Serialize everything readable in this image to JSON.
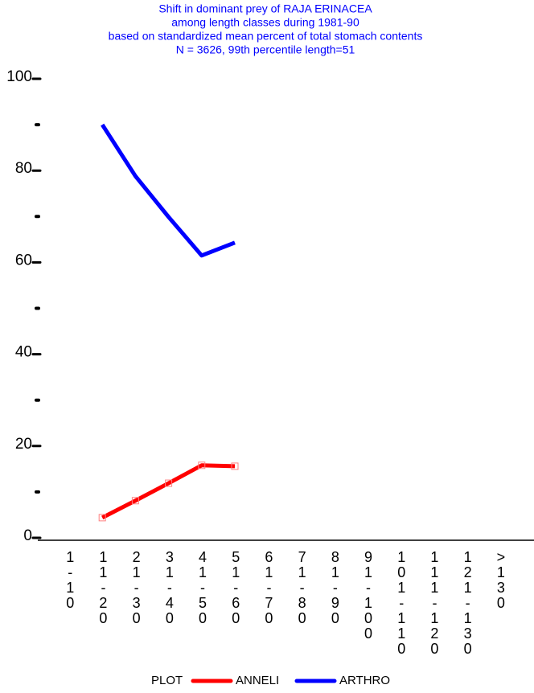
{
  "chart_data": {
    "type": "line",
    "title_lines": [
      "Shift in dominant prey of RAJA ERINACEA",
      "among length classes during 1981-90",
      "based on standardized mean percent of  total stomach contents",
      "N = 3626, 99th percentile  length=51"
    ],
    "categories": [
      "1-10",
      "11-20",
      "21-30",
      "31-40",
      "41-50",
      "51-60",
      "61-70",
      "71-80",
      "81-90",
      "91-100",
      "101-110",
      "111-120",
      "121-130",
      ">130"
    ],
    "series": [
      {
        "name": "ANNELI",
        "color": "#ff0000",
        "marker": "square",
        "values": [
          null,
          4.4,
          8.1,
          11.9,
          15.8,
          15.6,
          null,
          null,
          null,
          null,
          null,
          null,
          null,
          null
        ]
      },
      {
        "name": "ARTHRO",
        "color": "#0000ff",
        "values": [
          null,
          90.0,
          78.8,
          69.9,
          61.5,
          64.3,
          null,
          null,
          null,
          null,
          null,
          null,
          null,
          null
        ]
      }
    ],
    "legend_title": "PLOT",
    "ylim": [
      0,
      100
    ],
    "yticks": [
      0,
      20,
      40,
      60,
      80,
      100
    ],
    "minor_yticks": [
      10,
      30,
      50,
      70,
      90
    ]
  }
}
